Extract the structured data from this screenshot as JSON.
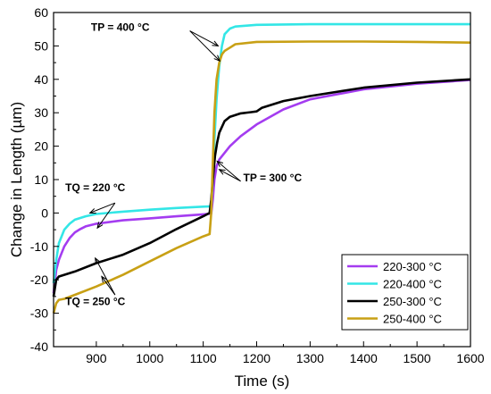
{
  "chart_data": {
    "type": "line",
    "title": "",
    "xlabel": "Time (s)",
    "ylabel": "Change in Length (µm)",
    "xlim": [
      820,
      1600
    ],
    "ylim": [
      -40,
      60
    ],
    "xticks": [
      900,
      1000,
      1100,
      1200,
      1300,
      1400,
      1500,
      1600
    ],
    "yticks": [
      -40,
      -30,
      -20,
      -10,
      0,
      10,
      20,
      30,
      40,
      50,
      60
    ],
    "grid": false,
    "legend_position": "bottom-right",
    "series": [
      {
        "name": "220-300 °C",
        "color": "#a43cf0",
        "x": [
          820,
          825,
          830,
          840,
          850,
          860,
          870,
          880,
          900,
          950,
          1000,
          1050,
          1100,
          1115,
          1118,
          1121,
          1125,
          1130,
          1140,
          1150,
          1170,
          1200,
          1250,
          1300,
          1400,
          1500,
          1600
        ],
        "y": [
          -24,
          -17,
          -14,
          -10,
          -7.5,
          -5.8,
          -4.8,
          -4,
          -3.2,
          -2.2,
          -1.6,
          -1,
          -0.4,
          -0.2,
          4,
          10,
          14,
          16,
          18,
          20,
          23,
          26.5,
          31,
          34,
          37,
          38.7,
          39.8
        ]
      },
      {
        "name": "220-400 °C",
        "color": "#33e6e6",
        "x": [
          820,
          825,
          830,
          840,
          850,
          860,
          880,
          900,
          950,
          1000,
          1050,
          1100,
          1115,
          1118,
          1121,
          1125,
          1130,
          1135,
          1140,
          1150,
          1160,
          1200,
          1300,
          1400,
          1500,
          1600
        ],
        "y": [
          -21,
          -14,
          -9,
          -5,
          -3.2,
          -2,
          -1,
          -0.3,
          0.4,
          1,
          1.5,
          1.9,
          2,
          10,
          22,
          34,
          44,
          50,
          53.5,
          55.2,
          55.8,
          56.3,
          56.5,
          56.5,
          56.5,
          56.5
        ]
      },
      {
        "name": "250-300 °C",
        "color": "#000000",
        "x": [
          820,
          825,
          830,
          840,
          860,
          900,
          950,
          1000,
          1050,
          1100,
          1112,
          1115,
          1118,
          1122,
          1126,
          1130,
          1140,
          1150,
          1170,
          1190,
          1200,
          1210,
          1250,
          1300,
          1400,
          1500,
          1600
        ],
        "y": [
          -25,
          -20,
          -19,
          -18.5,
          -17.5,
          -15,
          -12.5,
          -9,
          -4.8,
          -1,
          0,
          4,
          10,
          17,
          21,
          24,
          27.5,
          28.8,
          29.8,
          30.2,
          30.4,
          31.5,
          33.5,
          35,
          37.5,
          39,
          40
        ]
      },
      {
        "name": "250-400 °C",
        "color": "#c8a015",
        "x": [
          820,
          825,
          830,
          840,
          860,
          900,
          950,
          1000,
          1050,
          1100,
          1112,
          1115,
          1118,
          1121,
          1125,
          1130,
          1135,
          1140,
          1150,
          1160,
          1200,
          1300,
          1400,
          1500,
          1600
        ],
        "y": [
          -30,
          -27,
          -26,
          -25.7,
          -24.5,
          -22,
          -18.5,
          -14.5,
          -10.5,
          -7,
          -6.3,
          0,
          15,
          30,
          40,
          45,
          47.5,
          48.5,
          49.5,
          50.5,
          51.2,
          51.3,
          51.3,
          51.2,
          51
        ]
      }
    ],
    "annotations": [
      {
        "text": "TP = 400 °C"
      },
      {
        "text": "TP = 300 °C"
      },
      {
        "text": "TQ = 220 °C"
      },
      {
        "text": "TQ = 250 °C"
      }
    ]
  }
}
